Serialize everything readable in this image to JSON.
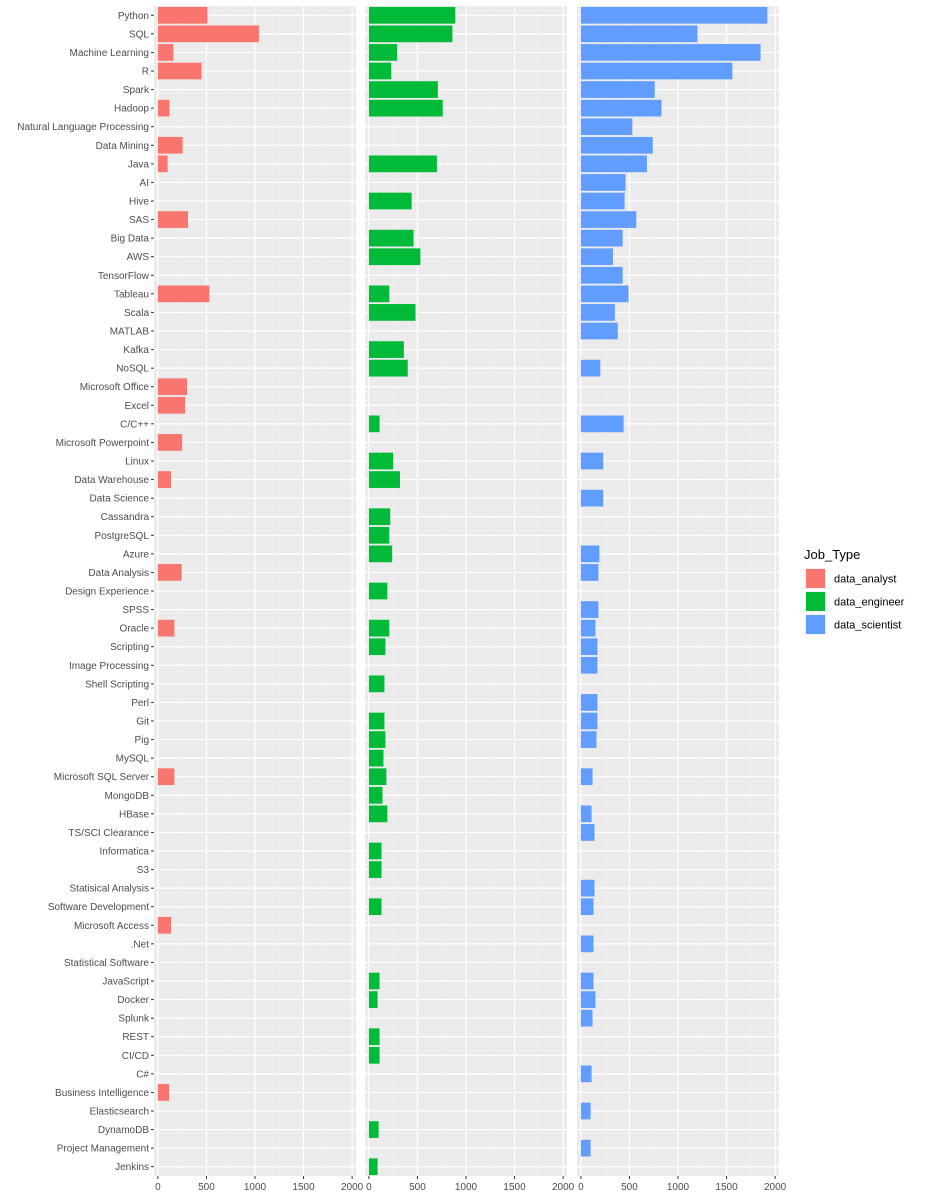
{
  "chart_data": {
    "type": "bar",
    "orientation": "horizontal",
    "facets": [
      "data_analyst",
      "data_engineer",
      "data_scientist"
    ],
    "xlim": [
      -40,
      2040
    ],
    "x_ticks": [
      0,
      500,
      1000,
      1500,
      2000
    ],
    "grid": true,
    "legend": {
      "title": "Job_Type",
      "placement": "right",
      "entries": [
        {
          "name": "data_analyst",
          "color": "#F8766D"
        },
        {
          "name": "data_engineer",
          "color": "#00BA38"
        },
        {
          "name": "data_scientist",
          "color": "#619CFF"
        }
      ]
    },
    "categories": [
      "Python",
      "SQL",
      "Machine Learning",
      "R",
      "Spark",
      "Hadoop",
      "Natural Language Processing",
      "Data Mining",
      "Java",
      "AI",
      "Hive",
      "SAS",
      "Big Data",
      "AWS",
      "TensorFlow",
      "Tableau",
      "Scala",
      "MATLAB",
      "Kafka",
      "NoSQL",
      "Microsoft Office",
      "Excel",
      "C/C++",
      "Microsoft Powerpoint",
      "Linux",
      "Data Warehouse",
      "Data Science",
      "Cassandra",
      "PostgreSQL",
      "Azure",
      "Data Analysis",
      "Design Experience",
      "SPSS",
      "Oracle",
      "Scripting",
      "Image Processing",
      "Shell Scripting",
      "Perl",
      "Git",
      "Pig",
      "MySQL",
      "Microsoft SQL Server",
      "MongoDB",
      "HBase",
      "TS/SCI Clearance",
      "Informatica",
      "S3",
      "Statisical Analysis",
      "Software Development",
      "Microsoft Access",
      ".Net",
      "Statistical Software",
      "JavaScript",
      "Docker",
      "Splunk",
      "REST",
      "CI/CD",
      "C#",
      "Business Intelligence",
      "Elasticsearch",
      "DynamoDB",
      "Project Management",
      "Jenkins"
    ],
    "series": [
      {
        "name": "data_analyst",
        "color": "#F8766D",
        "values": [
          510,
          1040,
          160,
          450,
          0,
          120,
          0,
          255,
          100,
          0,
          0,
          310,
          0,
          0,
          0,
          530,
          0,
          0,
          0,
          0,
          300,
          280,
          0,
          250,
          0,
          135,
          0,
          0,
          0,
          0,
          245,
          0,
          0,
          170,
          0,
          0,
          0,
          0,
          0,
          0,
          0,
          170,
          0,
          0,
          0,
          0,
          0,
          0,
          0,
          135,
          0,
          0,
          0,
          0,
          0,
          0,
          0,
          0,
          115,
          0,
          0,
          0,
          0
        ]
      },
      {
        "name": "data_engineer",
        "color": "#00BA38",
        "values": [
          890,
          860,
          290,
          230,
          710,
          760,
          0,
          0,
          700,
          0,
          440,
          0,
          460,
          530,
          0,
          210,
          480,
          0,
          360,
          400,
          0,
          0,
          110,
          0,
          250,
          320,
          0,
          220,
          210,
          240,
          0,
          190,
          0,
          210,
          170,
          0,
          160,
          0,
          160,
          170,
          150,
          180,
          140,
          190,
          0,
          130,
          130,
          0,
          130,
          0,
          0,
          0,
          110,
          90,
          0,
          110,
          110,
          0,
          0,
          0,
          100,
          0,
          90
        ]
      },
      {
        "name": "data_scientist",
        "color": "#619CFF",
        "values": [
          1920,
          1200,
          1850,
          1560,
          760,
          830,
          530,
          740,
          680,
          460,
          450,
          570,
          430,
          330,
          430,
          490,
          350,
          380,
          0,
          200,
          0,
          0,
          440,
          0,
          230,
          0,
          230,
          0,
          0,
          190,
          180,
          0,
          180,
          150,
          170,
          170,
          0,
          170,
          170,
          160,
          0,
          120,
          0,
          110,
          140,
          0,
          0,
          140,
          130,
          0,
          130,
          0,
          130,
          150,
          120,
          0,
          0,
          110,
          0,
          100,
          0,
          100,
          0
        ]
      }
    ]
  }
}
